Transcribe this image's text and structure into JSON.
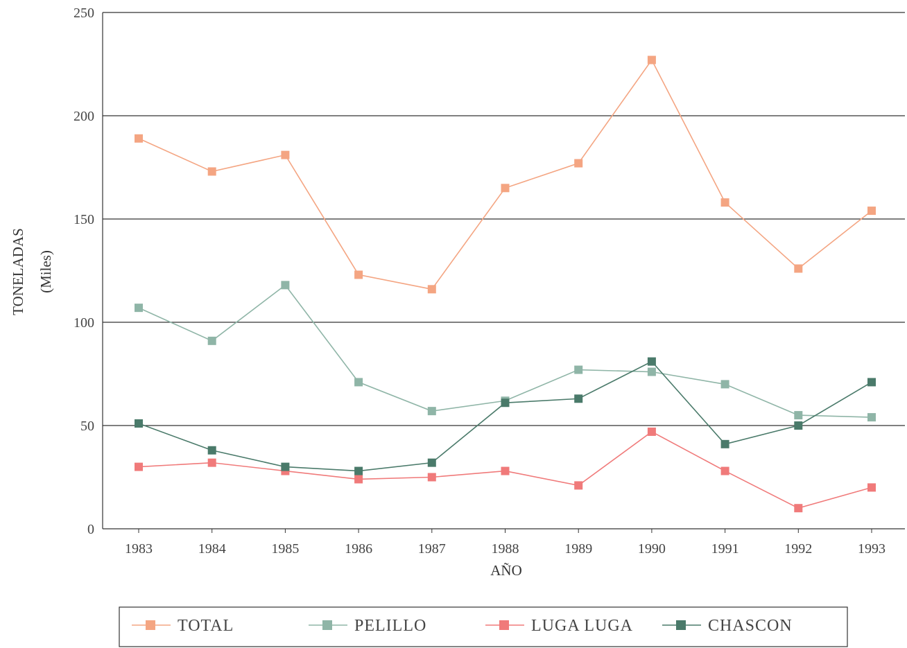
{
  "chart_data": {
    "type": "line",
    "title": "",
    "xlabel": "AÑO",
    "ylabel": "TONELADAS",
    "ylabel_sub": "(Miles)",
    "categories": [
      "1983",
      "1984",
      "1985",
      "1986",
      "1987",
      "1988",
      "1989",
      "1990",
      "1991",
      "1992",
      "1993"
    ],
    "ylim": [
      0,
      250
    ],
    "yticks": [
      "0",
      "50",
      "100",
      "150",
      "200",
      "250"
    ],
    "grid": "horizontal",
    "legend_position": "bottom",
    "series": [
      {
        "name": "TOTAL",
        "color": "#f4a582",
        "values": [
          189,
          173,
          181,
          123,
          116,
          165,
          177,
          227,
          158,
          126,
          154
        ]
      },
      {
        "name": "PELILLO",
        "color": "#8fb5a7",
        "values": [
          107,
          91,
          118,
          71,
          57,
          62,
          77,
          76,
          70,
          55,
          54
        ]
      },
      {
        "name": "LUGA LUGA",
        "color": "#f07a7a",
        "values": [
          30,
          32,
          28,
          24,
          25,
          28,
          21,
          47,
          28,
          10,
          20
        ]
      },
      {
        "name": "CHASCON",
        "color": "#4a7a6a",
        "values": [
          51,
          38,
          30,
          28,
          32,
          61,
          63,
          81,
          41,
          50,
          71
        ]
      }
    ]
  }
}
